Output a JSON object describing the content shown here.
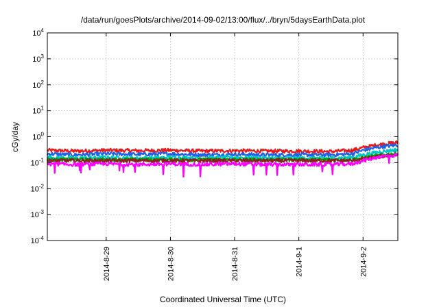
{
  "chart_data": {
    "type": "line",
    "title": "/data/run/goesPlots/archive/2014-09-02/13:00/flux/../bryn/5daysEarthData.plot",
    "xlabel": "Coordinated Universal Time (UTC)",
    "ylabel": "cGy/day",
    "yscale": "log",
    "ylim": [
      0.0001,
      10000
    ],
    "xlim": [
      "2014-08-28 02:00",
      "2014-09-02 13:00"
    ],
    "grid": true,
    "legend": "none",
    "y_ticks": [
      {
        "value": 0.0001,
        "base": "10",
        "exp": "-4"
      },
      {
        "value": 0.001,
        "base": "10",
        "exp": "-3"
      },
      {
        "value": 0.01,
        "base": "10",
        "exp": "-2"
      },
      {
        "value": 0.1,
        "base": "10",
        "exp": "-1"
      },
      {
        "value": 1,
        "base": "10",
        "exp": "0"
      },
      {
        "value": 10,
        "base": "10",
        "exp": "1"
      },
      {
        "value": 100,
        "base": "10",
        "exp": "2"
      },
      {
        "value": 1000,
        "base": "10",
        "exp": "3"
      },
      {
        "value": 10000,
        "base": "10",
        "exp": "4"
      }
    ],
    "x_ticks": [
      {
        "value": "2014-08-29 00:00",
        "label": "2014-8-29"
      },
      {
        "value": "2014-08-30 00:00",
        "label": "2014-8-30"
      },
      {
        "value": "2014-08-31 00:00",
        "label": "2014-8-31"
      },
      {
        "value": "2014-09-01 00:00",
        "label": "2014-9-1"
      },
      {
        "value": "2014-09-02 00:00",
        "label": "2014-9-2"
      }
    ],
    "series": [
      {
        "color": "#e41a1c",
        "x": [
          "2014-08-28 02:00",
          "2014-08-28 12:00",
          "2014-08-29 00:00",
          "2014-08-29 12:00",
          "2014-08-30 00:00",
          "2014-08-30 12:00",
          "2014-08-31 00:00",
          "2014-08-31 12:00",
          "2014-09-01 00:00",
          "2014-09-01 12:00",
          "2014-09-01 20:00",
          "2014-09-02 00:00",
          "2014-09-02 06:00",
          "2014-09-02 13:00"
        ],
        "y": [
          0.3,
          0.28,
          0.3,
          0.29,
          0.3,
          0.28,
          0.29,
          0.28,
          0.28,
          0.27,
          0.3,
          0.38,
          0.5,
          0.6
        ]
      },
      {
        "color": "#2060e8",
        "x": [
          "2014-08-28 02:00",
          "2014-08-28 12:00",
          "2014-08-29 00:00",
          "2014-08-29 12:00",
          "2014-08-30 00:00",
          "2014-08-30 12:00",
          "2014-08-31 00:00",
          "2014-08-31 12:00",
          "2014-09-01 00:00",
          "2014-09-01 12:00",
          "2014-09-01 20:00",
          "2014-09-02 00:00",
          "2014-09-02 06:00",
          "2014-09-02 13:00"
        ],
        "y": [
          0.22,
          0.2,
          0.22,
          0.21,
          0.22,
          0.2,
          0.21,
          0.2,
          0.2,
          0.2,
          0.22,
          0.3,
          0.4,
          0.48
        ]
      },
      {
        "color": "#00c8c8",
        "x": [
          "2014-08-28 02:00",
          "2014-08-28 12:00",
          "2014-08-29 00:00",
          "2014-08-29 12:00",
          "2014-08-30 00:00",
          "2014-08-30 12:00",
          "2014-08-31 00:00",
          "2014-08-31 12:00",
          "2014-09-01 00:00",
          "2014-09-01 12:00",
          "2014-09-01 20:00",
          "2014-09-02 00:00",
          "2014-09-02 06:00",
          "2014-09-02 13:00"
        ],
        "y": [
          0.16,
          0.15,
          0.16,
          0.15,
          0.16,
          0.15,
          0.16,
          0.15,
          0.15,
          0.15,
          0.16,
          0.2,
          0.26,
          0.32
        ]
      },
      {
        "color": "#00a000",
        "x": [
          "2014-08-28 02:00",
          "2014-08-28 12:00",
          "2014-08-29 00:00",
          "2014-08-29 12:00",
          "2014-08-30 00:00",
          "2014-08-30 12:00",
          "2014-08-31 00:00",
          "2014-08-31 12:00",
          "2014-09-01 00:00",
          "2014-09-01 12:00",
          "2014-09-01 20:00",
          "2014-09-02 00:00",
          "2014-09-02 06:00",
          "2014-09-02 13:00"
        ],
        "y": [
          0.13,
          0.13,
          0.13,
          0.13,
          0.13,
          0.13,
          0.13,
          0.13,
          0.13,
          0.13,
          0.13,
          0.15,
          0.19,
          0.23
        ]
      },
      {
        "color": "#8b2020",
        "x": [
          "2014-08-28 02:00",
          "2014-08-28 12:00",
          "2014-08-29 00:00",
          "2014-08-29 12:00",
          "2014-08-30 00:00",
          "2014-08-30 12:00",
          "2014-08-31 00:00",
          "2014-08-31 12:00",
          "2014-09-01 00:00",
          "2014-09-01 12:00",
          "2014-09-01 20:00",
          "2014-09-02 00:00",
          "2014-09-02 06:00",
          "2014-09-02 13:00"
        ],
        "y": [
          0.12,
          0.12,
          0.12,
          0.12,
          0.12,
          0.12,
          0.12,
          0.12,
          0.12,
          0.12,
          0.12,
          0.14,
          0.17,
          0.2
        ]
      },
      {
        "color": "#ff00ff",
        "x": [
          "2014-08-28 02:00",
          "2014-08-28 12:00",
          "2014-08-29 00:00",
          "2014-08-29 12:00",
          "2014-08-30 00:00",
          "2014-08-30 12:00",
          "2014-08-31 00:00",
          "2014-08-31 12:00",
          "2014-09-01 00:00",
          "2014-09-01 12:00",
          "2014-09-01 20:00",
          "2014-09-02 00:00",
          "2014-09-02 06:00",
          "2014-09-02 13:00"
        ],
        "y": [
          0.09,
          0.085,
          0.09,
          0.085,
          0.09,
          0.085,
          0.09,
          0.085,
          0.085,
          0.085,
          0.09,
          0.12,
          0.17,
          0.2
        ]
      }
    ],
    "colors": {
      "grid": "#b0b0b0",
      "axis": "#000000"
    }
  }
}
